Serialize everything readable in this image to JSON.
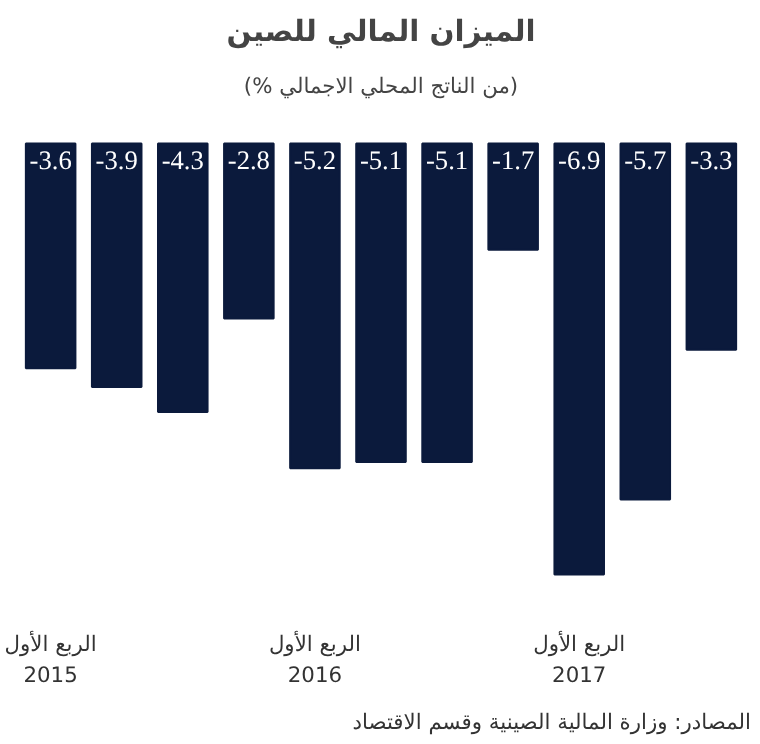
{
  "chart_data": {
    "type": "bar",
    "title": "الميزان المالي للصين",
    "subtitle": "(% من الناتج المحلي الاجمالي)",
    "categories": [
      "الربع الأول\n2015",
      null,
      null,
      null,
      "الربع الأول\n2016",
      null,
      null,
      null,
      "الربع الأول\n2017",
      null,
      null
    ],
    "values": [
      -3.6,
      -3.9,
      -4.3,
      -2.8,
      -5.2,
      -5.1,
      -5.1,
      -1.7,
      -6.9,
      -5.7,
      -3.3
    ],
    "color": "#0b1a3c",
    "data_labels": true,
    "annotations": [
      "المصادر: وزارة المالية الصينية وقسم الاقتصاد"
    ]
  }
}
